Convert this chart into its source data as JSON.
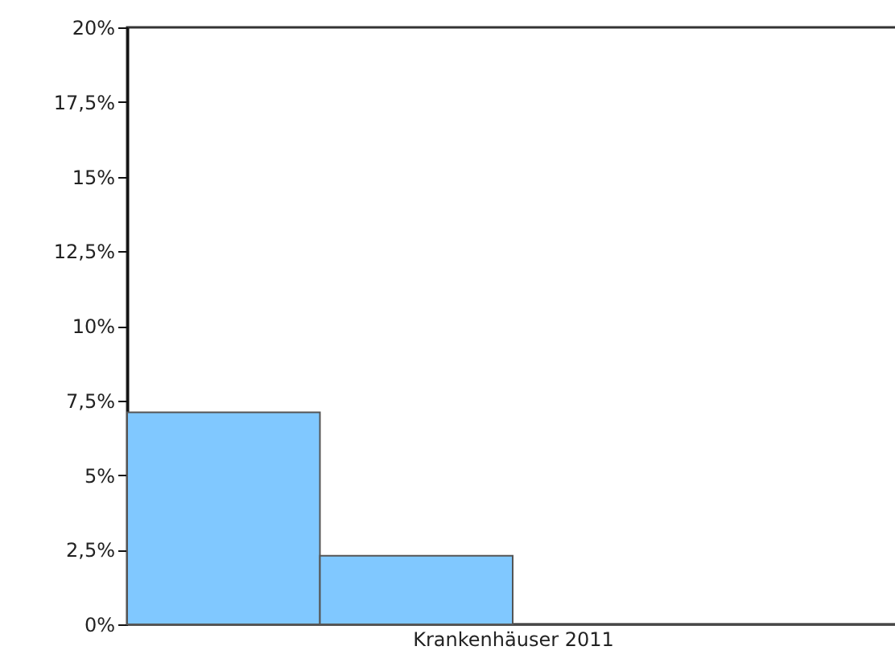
{
  "chart_data": {
    "type": "bar",
    "xlabel": "Krankenhäuser 2011",
    "categories": [
      null,
      null,
      null,
      null
    ],
    "values": [
      7.1,
      2.3,
      null,
      null
    ],
    "color": "#80c8ff",
    "ylim": [
      0,
      20
    ],
    "yticks": [
      {
        "value": 0,
        "label": "0%"
      },
      {
        "value": 2.5,
        "label": "2,5%"
      },
      {
        "value": 5,
        "label": "5%"
      },
      {
        "value": 7.5,
        "label": "7,5%"
      },
      {
        "value": 10,
        "label": "10%"
      },
      {
        "value": 12.5,
        "label": "12,5%"
      },
      {
        "value": 15,
        "label": "15%"
      },
      {
        "value": 17.5,
        "label": "17,5%"
      },
      {
        "value": 20,
        "label": "20%"
      }
    ],
    "grid": false
  }
}
